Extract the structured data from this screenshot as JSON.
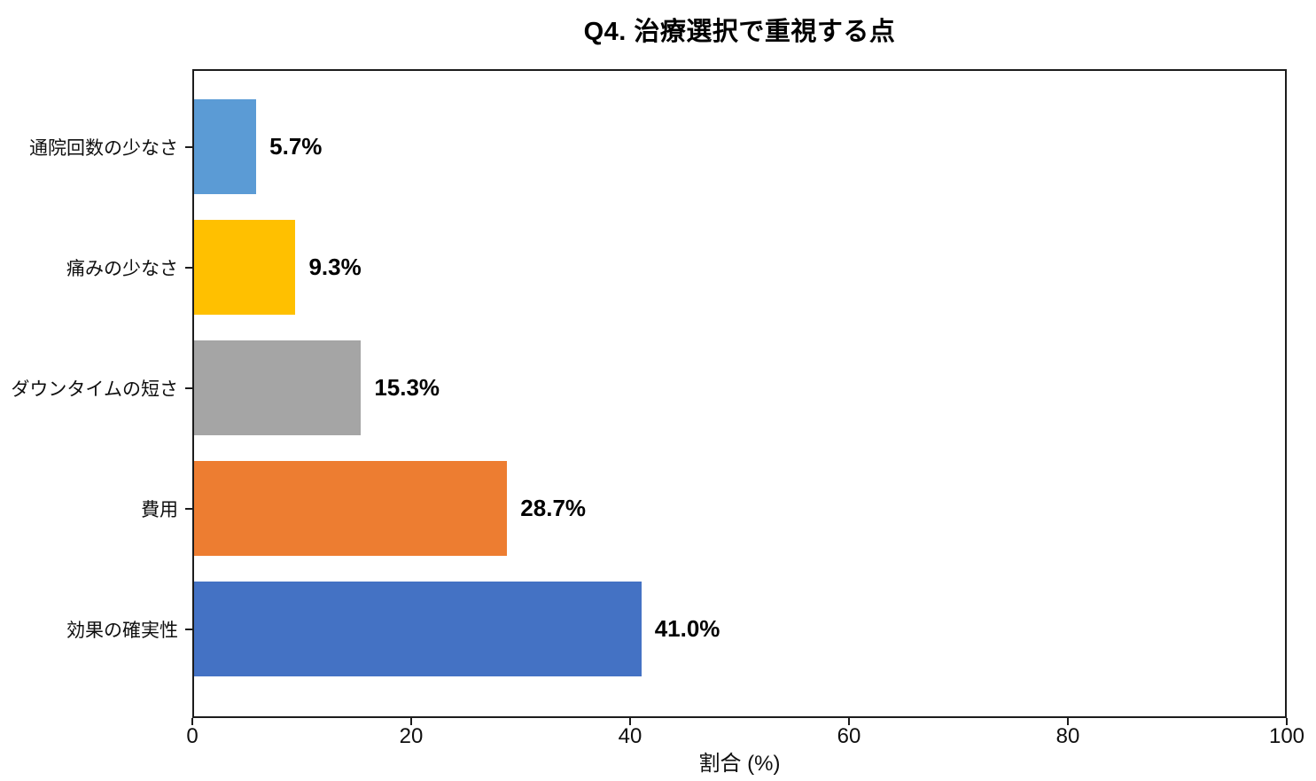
{
  "chart_data": {
    "type": "bar",
    "orientation": "horizontal",
    "title": "Q4. 治療選択で重視する点",
    "categories": [
      "通院回数の少なさ",
      "痛みの少なさ",
      "ダウンタイムの短さ",
      "費用",
      "効果の確実性"
    ],
    "values": [
      5.7,
      9.3,
      15.3,
      28.7,
      41.0
    ],
    "value_labels": [
      "5.7%",
      "9.3%",
      "15.3%",
      "28.7%",
      "41.0%"
    ],
    "bar_colors": [
      "#5B9BD5",
      "#FFC000",
      "#A5A5A5",
      "#ED7D31",
      "#4472C4"
    ],
    "xlabel": "割合 (%)",
    "x_ticks": [
      "0",
      "20",
      "40",
      "60",
      "80",
      "100"
    ],
    "xlim": [
      0,
      100
    ],
    "grid": false,
    "legend": "none",
    "axis_color": "#1c1c1c",
    "background_color": "#ffffff"
  }
}
